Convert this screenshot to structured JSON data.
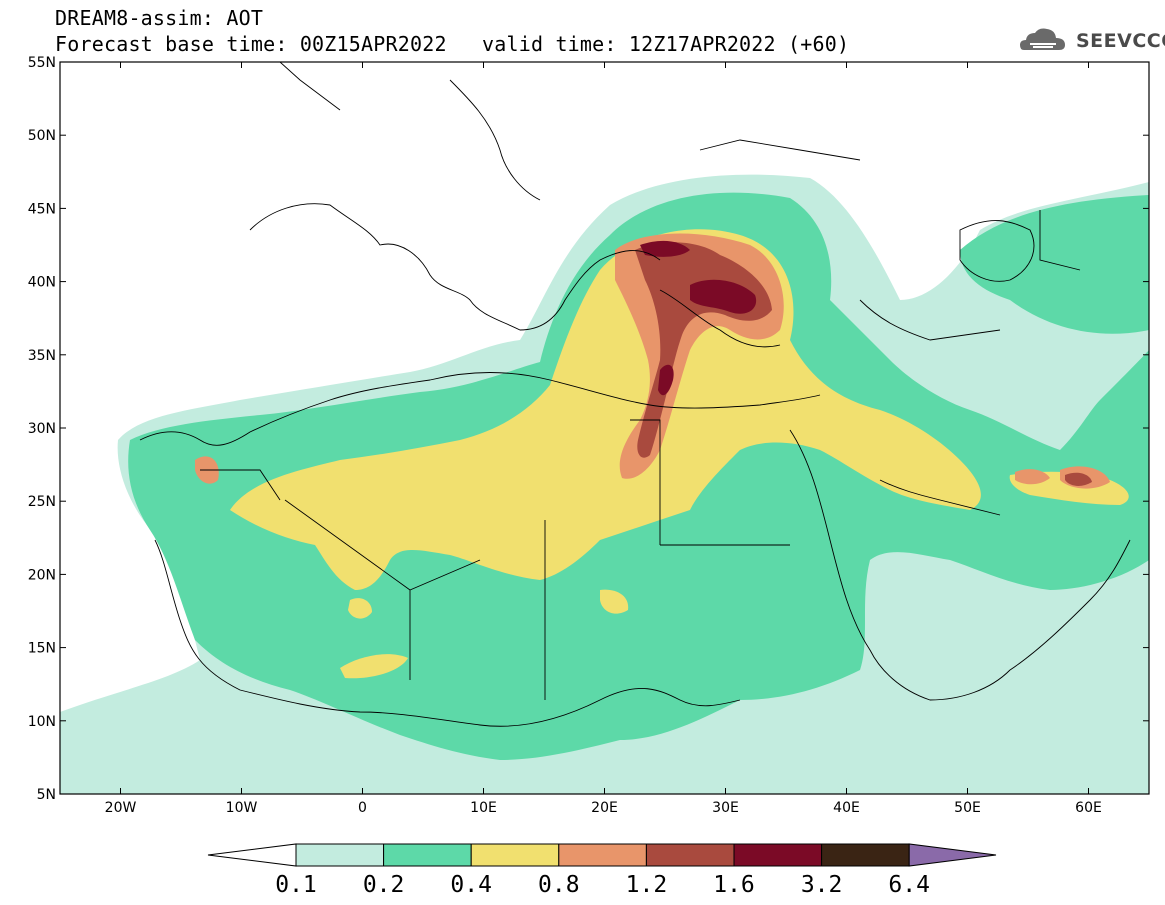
{
  "header": {
    "title": "DREAM8-assim: AOT",
    "base_time": "Forecast base time: 00Z15APR2022",
    "valid_time": "valid time: 12Z17APR2022 (+60)"
  },
  "logo": {
    "text": "SEEVCCC",
    "icon": "cloud-icon"
  },
  "axes": {
    "lon_labels": [
      "20W",
      "10W",
      "0",
      "10E",
      "20E",
      "30E",
      "40E",
      "50E",
      "60E"
    ],
    "lat_labels": [
      "55N",
      "50N",
      "45N",
      "40N",
      "35N",
      "30N",
      "25N",
      "20N",
      "15N",
      "10N",
      "5N"
    ],
    "lon_range": [
      -25,
      65
    ],
    "lat_range": [
      5,
      55
    ]
  },
  "colorbar": {
    "labels": [
      "0.1",
      "0.2",
      "0.4",
      "0.8",
      "1.2",
      "1.6",
      "3.2",
      "6.4"
    ],
    "colors": [
      "#ffffff",
      "#c3ecdf",
      "#5dd9a8",
      "#f1e06f",
      "#e8956a",
      "#a94a3e",
      "#7b0a26",
      "#3a2414",
      "#8a6aa9"
    ]
  }
}
